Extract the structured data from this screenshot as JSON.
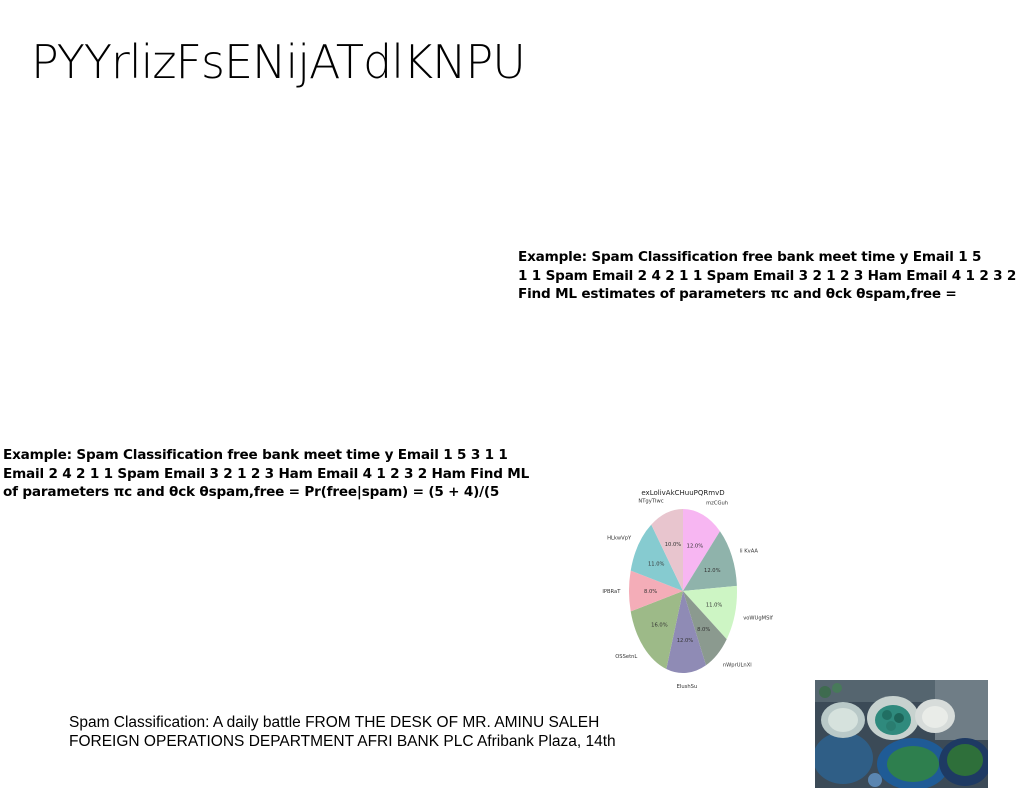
{
  "slide": {
    "title": "PYYrlizFsENijATdlKNPU",
    "text_block_right": [
      "Example: Spam Classification free bank meet time y Email 1 5",
      "1 1 Spam Email 2 4 2 1 1 Spam Email 3 2 1 2 3 Ham Email 4 1 2 3 2",
      "Find ML estimates of parameters πc and θck θspam,free ="
    ],
    "text_block_left": [
      "Example: Spam Classification free bank meet time y Email 1 5 3 1 1",
      "Email 2 4 2 1 1 Spam Email 3 2 1 2 3 Ham Email 4 1 2 3 2 Ham Find ML",
      "of parameters πc and θck θspam,free = Pr(free|spam) = (5 + 4)/(5"
    ],
    "text_block_bottom": [
      "Spam Classification: A daily battle FROM THE DESK OF MR. AMINU SALEH",
      "FOREIGN OPERATIONS DEPARTMENT AFRI BANK PLC Afribank Plaza, 14th"
    ]
  },
  "chart_data": {
    "type": "pie",
    "title": "exLolivAkCHuuPQRmvD",
    "start_angle_deg": 90,
    "direction": "clockwise",
    "slices": [
      {
        "label": "mzCGuh",
        "value": 12.0,
        "pct_label": "12.0%",
        "color": "#f7b6f2"
      },
      {
        "label": "li KvAA",
        "value": 12.0,
        "pct_label": "12.0%",
        "color": "#8fb3ab"
      },
      {
        "label": "voWUgMSIf",
        "value": 11.0,
        "pct_label": "11.0%",
        "color": "#cdf5c4"
      },
      {
        "label": "nWprULnXl",
        "value": 8.0,
        "pct_label": "8.0%",
        "color": "#8b9a8f"
      },
      {
        "label": "EIushSu",
        "value": 12.0,
        "pct_label": "12.0%",
        "color": "#8f8bb5"
      },
      {
        "label": "OSSetnL",
        "value": 16.0,
        "pct_label": "16.0%",
        "color": "#9dba88"
      },
      {
        "label": "IPBRaT",
        "value": 8.0,
        "pct_label": "8.0%",
        "color": "#f4adb8"
      },
      {
        "label": "HLkwVpY",
        "value": 11.0,
        "pct_label": "11.0%",
        "color": "#86cbd0"
      },
      {
        "label": "NTgyTIwc",
        "value": 10.0,
        "pct_label": "10.0%",
        "color": "#e8c5ce"
      }
    ]
  },
  "image": {
    "description_icon": "food-photo-icon"
  }
}
